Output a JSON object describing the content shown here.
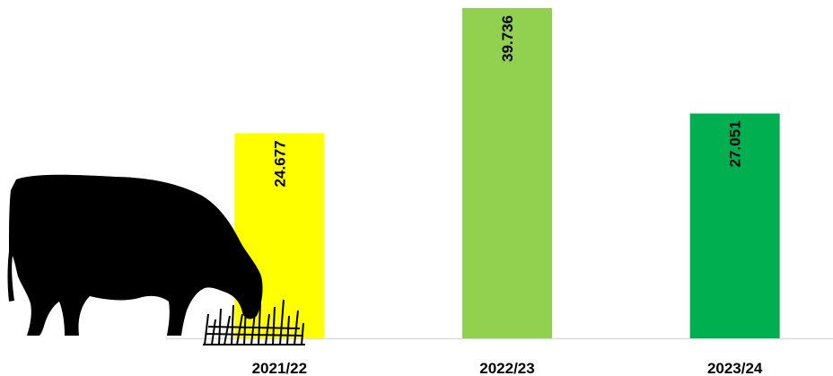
{
  "chart_data": {
    "type": "bar",
    "categories": [
      "2021/22",
      "2022/23",
      "2023/24"
    ],
    "values": [
      24.677,
      39.736,
      27.051
    ],
    "colors": [
      "#ffff00",
      "#92d050",
      "#00b050"
    ]
  }
}
